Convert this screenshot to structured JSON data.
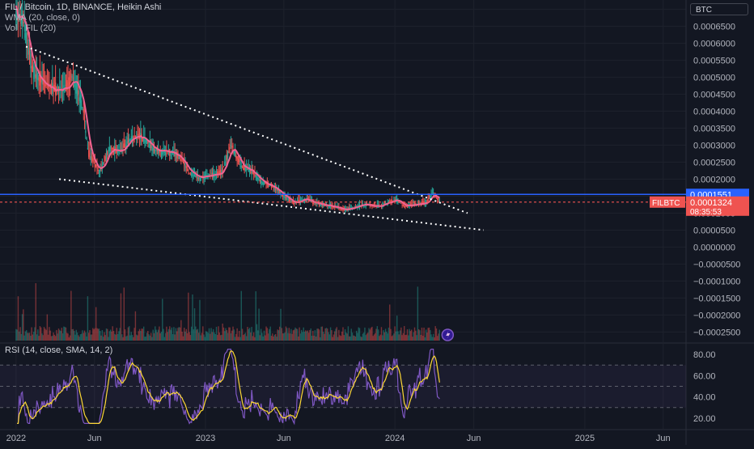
{
  "legend": {
    "symbol": "FIL / Bitcoin, 1D, BINANCE, Heikin Ashi",
    "wma": "WMA (20, close, 0)",
    "vol": "Vol · FIL (20)"
  },
  "price_axis": {
    "currency_label": "BTC",
    "ticks": [
      "0.0007000",
      "0.0006500",
      "0.0006000",
      "0.0005500",
      "0.0005000",
      "0.0004500",
      "0.0004000",
      "0.0003500",
      "0.0003000",
      "0.0002500",
      "0.0002000",
      "0.0001500",
      "0.0001000",
      "0.0000500",
      "0.0000000",
      "−0.0000500",
      "−0.0001000",
      "−0.0001500",
      "−0.0002000",
      "−0.0002500"
    ],
    "blue_line_value": "0.0001551",
    "symbol_tag": "FILBTC",
    "last_price": "0.0001324",
    "countdown": "08:35:53"
  },
  "rsi": {
    "legend": "RSI (14, close, SMA, 14, 2)",
    "ticks": [
      "80.00",
      "60.00",
      "40.00",
      "20.00"
    ]
  },
  "time_axis": {
    "labels": [
      "2022",
      "Jun",
      "2023",
      "Jun",
      "2024",
      "Jun",
      "2025",
      "Jun"
    ]
  },
  "colors": {
    "background": "#131722",
    "grid": "#1e222d",
    "candle_up": "#26a69a",
    "candle_down": "#ef5350",
    "wma": "#f06292",
    "rsi_line": "#7e57c2",
    "rsi_ma": "#fdd835",
    "blue_line": "#2962ff",
    "last_price": "#ef5350"
  },
  "chart_data": {
    "type": "line",
    "series": [
      {
        "name": "FIL / Bitcoin",
        "x": [
          "2022-01-01",
          "2022-01-15",
          "2022-02-01",
          "2022-02-20",
          "2022-03-10",
          "2022-04-01",
          "2022-04-20",
          "2022-05-10",
          "2022-05-20",
          "2022-06-10",
          "2022-07-01",
          "2022-07-20",
          "2022-08-05",
          "2022-08-25",
          "2022-09-15",
          "2022-10-05",
          "2022-10-25",
          "2022-11-10",
          "2022-12-01",
          "2022-12-20",
          "2023-01-10",
          "2023-02-01",
          "2023-02-20",
          "2023-03-10",
          "2023-04-01",
          "2023-04-20",
          "2023-05-10",
          "2023-06-01",
          "2023-06-20",
          "2023-07-10",
          "2023-08-01",
          "2023-09-01",
          "2023-10-01",
          "2023-11-01",
          "2023-12-01",
          "2024-01-01",
          "2024-01-20",
          "2024-02-10",
          "2024-03-01",
          "2024-03-15",
          "2024-03-28"
        ],
        "values": [
          0.00068,
          0.00066,
          0.00052,
          0.00049,
          0.00047,
          0.00046,
          0.0005,
          0.00041,
          0.00028,
          0.00022,
          0.00029,
          0.00028,
          0.00031,
          0.00033,
          0.0003,
          0.00028,
          0.00028,
          0.00027,
          0.00022,
          0.0002,
          0.00021,
          0.00022,
          0.0003,
          0.00024,
          0.00022,
          0.00019,
          0.00018,
          0.00015,
          0.00013,
          0.00014,
          0.00013,
          0.00012,
          0.00011,
          0.000125,
          0.00012,
          0.00014,
          0.00012,
          0.000125,
          0.00013,
          0.00016,
          0.0001324
        ]
      }
    ],
    "ylim": [
      -0.00028,
      0.00072
    ],
    "rsi_ylim": [
      10,
      90
    ],
    "trendlines": [
      {
        "style": "dotted",
        "points": [
          [
            "2022-01-20",
            0.00059
          ],
          [
            "2024-05-20",
            0.0001
          ]
        ]
      },
      {
        "style": "dotted",
        "points": [
          [
            "2022-03-25",
            0.0002
          ],
          [
            "2024-06-20",
            5e-05
          ]
        ]
      }
    ]
  }
}
